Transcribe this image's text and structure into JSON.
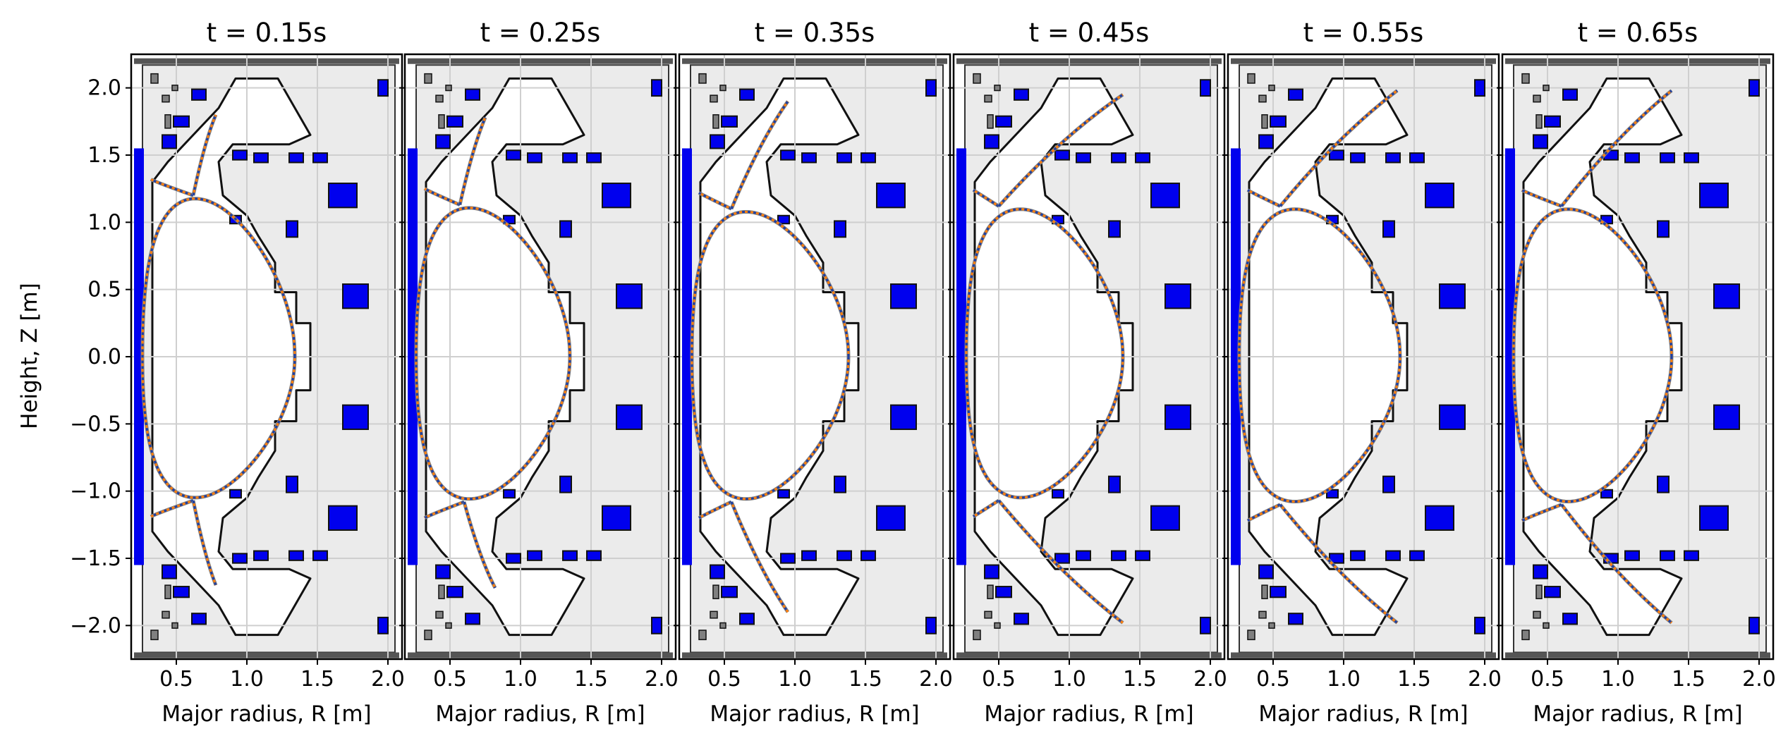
{
  "chart_data": {
    "type": "line",
    "layout": "6 panels side by side, shared y axis",
    "ylabel": "Height, Z [m]",
    "xlabel": "Major radius, R [m]",
    "xlim": [
      0.18,
      2.1
    ],
    "ylim": [
      -2.25,
      2.25
    ],
    "xticks": [
      0.5,
      1.0,
      1.5,
      2.0
    ],
    "xtick_labels": [
      "0.5",
      "1.0",
      "1.5",
      "2.0"
    ],
    "yticks": [
      2.0,
      1.5,
      1.0,
      0.5,
      0.0,
      -0.5,
      -1.0,
      -1.5,
      -2.0
    ],
    "ytick_labels": [
      "2.0",
      "1.5",
      "1.0",
      "0.5",
      "0.0",
      "−0.5",
      "−1.0",
      "−1.5",
      "−2.0"
    ],
    "grid": true,
    "colors": {
      "vessel_fill": "#ebebeb",
      "coil": "#0000ee",
      "passive": "#808080",
      "boundary_solid": "#808080",
      "boundary_dotted_a": "#1f3fa0",
      "boundary_dotted_b": "#ff7f0e",
      "grid": "#cfcfcf"
    },
    "panels": [
      {
        "title": "t = 0.15s",
        "t": 0.15,
        "config": "double-null",
        "xpoint_lower": [
          0.62,
          1.07
        ],
        "xpoint_upper": [
          0.62,
          1.2
        ],
        "rin": 0.26,
        "rout": 1.34,
        "leg_span_upper": [
          0.78,
          1.8
        ],
        "leg_span_lower": [
          0.78,
          -1.7
        ]
      },
      {
        "title": "t = 0.25s",
        "t": 0.25,
        "config": "double-null",
        "xpoint_lower": [
          0.6,
          1.08
        ],
        "xpoint_upper": [
          0.57,
          1.13
        ],
        "rin": 0.26,
        "rout": 1.35,
        "leg_span_upper": [
          0.75,
          1.78
        ],
        "leg_span_lower": [
          0.82,
          -1.72
        ]
      },
      {
        "title": "t = 0.35s",
        "t": 0.35,
        "config": "double-null",
        "xpoint_lower": [
          0.55,
          1.08
        ],
        "xpoint_upper": [
          0.55,
          1.1
        ],
        "rin": 0.27,
        "rout": 1.38,
        "leg_span_upper": [
          0.95,
          1.9
        ],
        "leg_span_lower": [
          0.95,
          -1.9
        ]
      },
      {
        "title": "t = 0.45s",
        "t": 0.45,
        "config": "double-null",
        "xpoint_lower": [
          0.5,
          1.07
        ],
        "xpoint_upper": [
          0.5,
          1.12
        ],
        "rin": 0.27,
        "rout": 1.38,
        "leg_span_upper": [
          1.38,
          1.95
        ],
        "leg_span_lower": [
          1.38,
          -1.98
        ]
      },
      {
        "title": "t = 0.55s",
        "t": 0.55,
        "config": "double-null",
        "xpoint_lower": [
          0.55,
          1.1
        ],
        "xpoint_upper": [
          0.55,
          1.12
        ],
        "rin": 0.26,
        "rout": 1.4,
        "leg_span_upper": [
          1.38,
          1.98
        ],
        "leg_span_lower": [
          1.38,
          -1.98
        ]
      },
      {
        "title": "t = 0.65s",
        "t": 0.65,
        "config": "double-null",
        "xpoint_lower": [
          0.6,
          1.1
        ],
        "xpoint_upper": [
          0.6,
          1.12
        ],
        "rin": 0.26,
        "rout": 1.38,
        "leg_span_upper": [
          1.38,
          1.98
        ],
        "leg_span_lower": [
          1.38,
          -1.98
        ]
      }
    ]
  }
}
